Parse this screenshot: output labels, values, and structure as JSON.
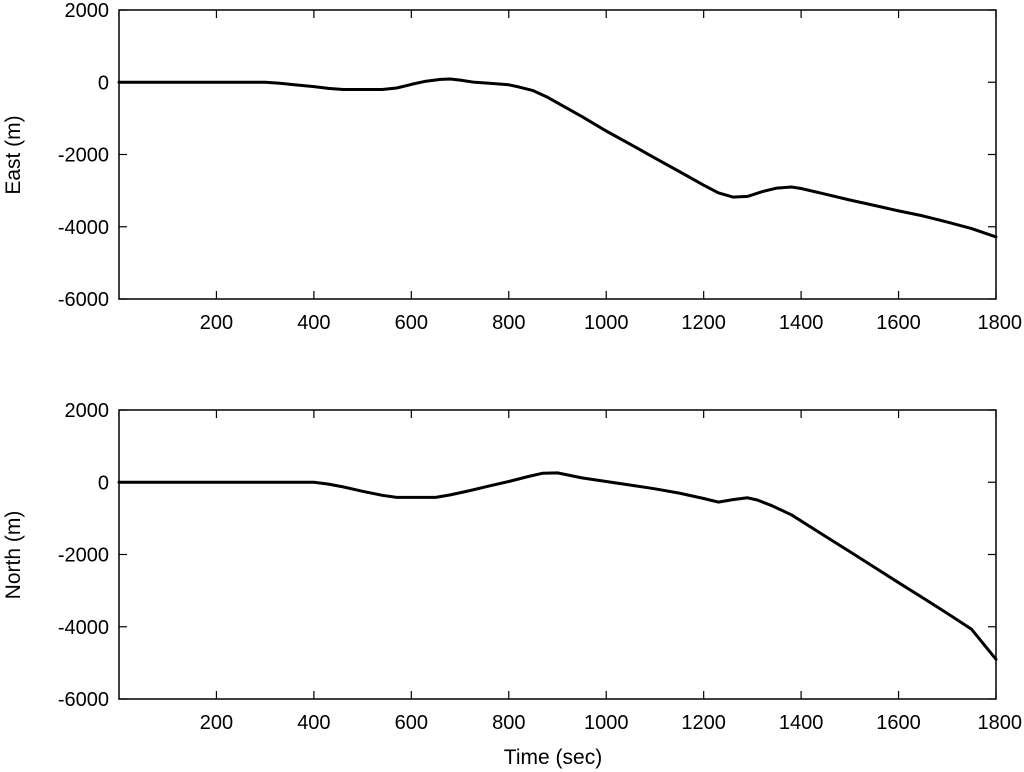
{
  "chart_data": [
    {
      "type": "line",
      "title": "",
      "xlabel": "",
      "ylabel": "East (m)",
      "xlim": [
        0,
        1800
      ],
      "ylim": [
        -6000,
        2000
      ],
      "xticks": [
        200,
        400,
        600,
        800,
        1000,
        1200,
        1400,
        1600,
        1800
      ],
      "xtick_labels": [
        "200",
        "400",
        "600",
        "800",
        "1000",
        "1200",
        "1400",
        "1600",
        "1800"
      ],
      "yticks": [
        2000,
        0,
        -2000,
        -4000,
        -6000
      ],
      "ytick_labels": [
        "2000",
        "0",
        "-2000",
        "-4000",
        "-6000"
      ],
      "grid": false,
      "line_color": "#000000",
      "series": [
        {
          "x": [
            0,
            100,
            200,
            300,
            330,
            360,
            400,
            430,
            460,
            500,
            540,
            570,
            600,
            630,
            660,
            680,
            700,
            730,
            760,
            800,
            820,
            850,
            880,
            950,
            1000,
            1050,
            1100,
            1150,
            1200,
            1230,
            1260,
            1290,
            1320,
            1350,
            1380,
            1400,
            1450,
            1500,
            1550,
            1600,
            1650,
            1700,
            1750,
            1800
          ],
          "y": [
            0,
            0,
            0,
            0,
            -30,
            -70,
            -120,
            -170,
            -200,
            -200,
            -200,
            -160,
            -60,
            30,
            80,
            90,
            60,
            0,
            -30,
            -70,
            -130,
            -230,
            -420,
            -950,
            -1350,
            -1720,
            -2100,
            -2470,
            -2850,
            -3060,
            -3180,
            -3160,
            -3030,
            -2930,
            -2900,
            -2940,
            -3100,
            -3260,
            -3410,
            -3560,
            -3700,
            -3870,
            -4050,
            -4280
          ]
        }
      ]
    },
    {
      "type": "line",
      "title": "",
      "xlabel": "Time (sec)",
      "ylabel": "North (m)",
      "xlim": [
        0,
        1800
      ],
      "ylim": [
        -6000,
        2000
      ],
      "xticks": [
        200,
        400,
        600,
        800,
        1000,
        1200,
        1400,
        1600,
        1800
      ],
      "xtick_labels": [
        "200",
        "400",
        "600",
        "800",
        "1000",
        "1200",
        "1400",
        "1600",
        "1800"
      ],
      "yticks": [
        2000,
        0,
        -2000,
        -4000,
        -6000
      ],
      "ytick_labels": [
        "2000",
        "0",
        "-2000",
        "-4000",
        "-6000"
      ],
      "grid": false,
      "line_color": "#000000",
      "series": [
        {
          "x": [
            0,
            100,
            200,
            300,
            400,
            430,
            460,
            500,
            540,
            570,
            600,
            650,
            680,
            720,
            760,
            800,
            840,
            870,
            900,
            950,
            1000,
            1050,
            1100,
            1150,
            1200,
            1230,
            1260,
            1290,
            1310,
            1340,
            1380,
            1450,
            1500,
            1550,
            1600,
            1650,
            1700,
            1750,
            1800
          ],
          "y": [
            0,
            0,
            0,
            0,
            0,
            -50,
            -130,
            -250,
            -360,
            -420,
            -420,
            -420,
            -350,
            -230,
            -100,
            20,
            160,
            250,
            260,
            120,
            20,
            -80,
            -180,
            -300,
            -450,
            -550,
            -480,
            -430,
            -490,
            -650,
            -900,
            -1500,
            -1920,
            -2350,
            -2780,
            -3200,
            -3630,
            -4070,
            -4900
          ]
        }
      ]
    }
  ]
}
